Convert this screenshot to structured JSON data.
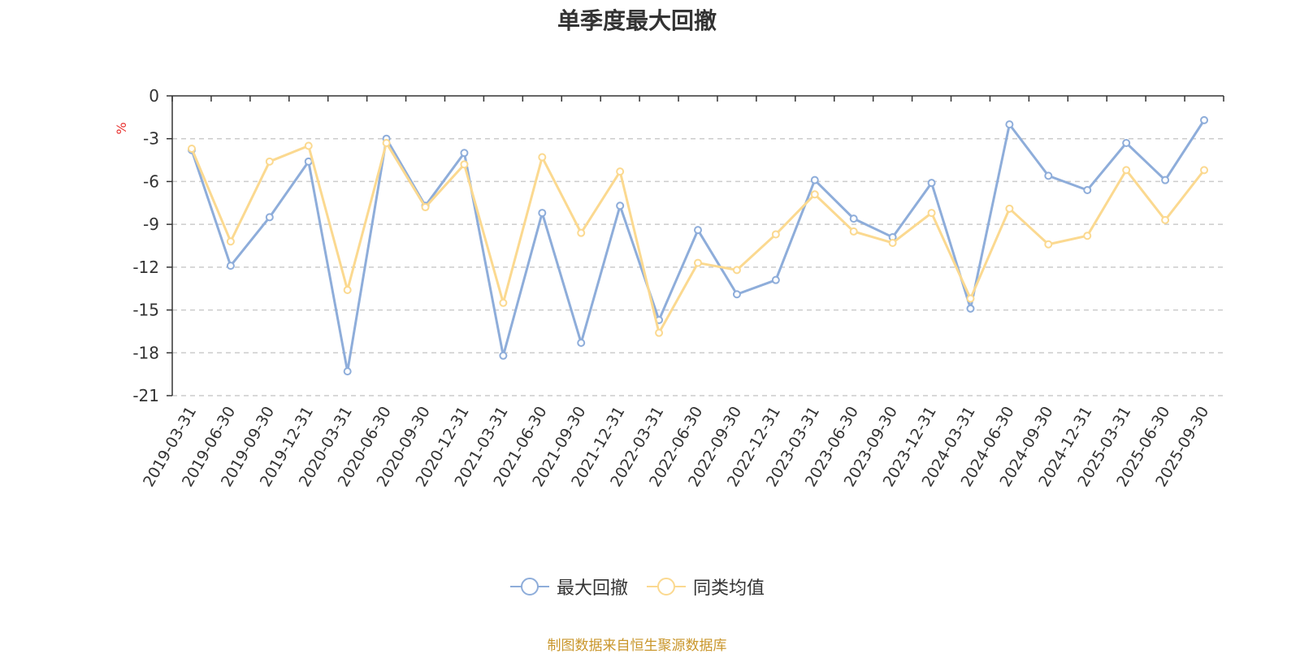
{
  "chart_data": {
    "type": "line",
    "title": "单季度最大回撤",
    "ylabel": "%",
    "ylim": [
      -21,
      0
    ],
    "yticks": [
      0,
      -3,
      -6,
      -9,
      -12,
      -15,
      -18,
      -21
    ],
    "categories": [
      "2019-03-31",
      "2019-06-30",
      "2019-09-30",
      "2019-12-31",
      "2020-03-31",
      "2020-06-30",
      "2020-09-30",
      "2020-12-31",
      "2021-03-31",
      "2021-06-30",
      "2021-09-30",
      "2021-12-31",
      "2022-03-31",
      "2022-06-30",
      "2022-09-30",
      "2022-12-31",
      "2023-03-31",
      "2023-06-30",
      "2023-09-30",
      "2023-12-31",
      "2024-03-31",
      "2024-06-30",
      "2024-09-30",
      "2024-12-31",
      "2025-03-31",
      "2025-06-30",
      "2025-09-30"
    ],
    "series": [
      {
        "name": "最大回撤",
        "color": "#8eadda",
        "values": [
          -3.8,
          -11.9,
          -8.5,
          -4.6,
          -19.3,
          -3.0,
          -7.7,
          -4.0,
          -18.2,
          -8.2,
          -17.3,
          -7.7,
          -15.7,
          -9.4,
          -13.9,
          -12.9,
          -5.9,
          -8.6,
          -9.9,
          -6.1,
          -14.9,
          -2.0,
          -5.6,
          -6.6,
          -3.3,
          -5.9,
          -1.7
        ]
      },
      {
        "name": "同类均值",
        "color": "#fbd990",
        "values": [
          -3.7,
          -10.2,
          -4.6,
          -3.5,
          -13.6,
          -3.3,
          -7.8,
          -4.8,
          -14.5,
          -4.3,
          -9.6,
          -5.3,
          -16.6,
          -11.7,
          -12.2,
          -9.7,
          -6.9,
          -9.5,
          -10.3,
          -8.2,
          -14.2,
          -7.9,
          -10.4,
          -9.8,
          -5.2,
          -8.7,
          -5.2
        ]
      }
    ],
    "legend_position": "bottom",
    "grid": "dashed-horizontal"
  },
  "source_note": "制图数据来自恒生聚源数据库"
}
